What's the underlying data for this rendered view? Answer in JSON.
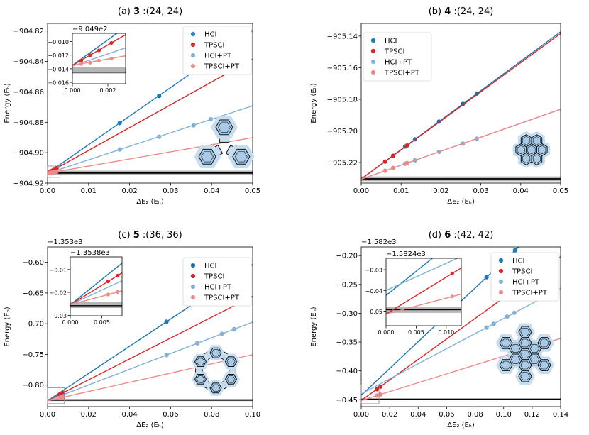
{
  "chart_data": [
    {
      "type": "line",
      "title": "(a) 3 :(24, 24)",
      "title_prefix": "(a)",
      "title_bold": "3",
      "title_suffix": ":(24, 24)",
      "xlabel": "ΔE₂ (Eₕ)",
      "ylabel": "Energy (Eₕ)",
      "xlim": [
        0,
        0.05
      ],
      "ylim": [
        -904.92,
        -904.815
      ],
      "x_ticks": [
        0,
        0.01,
        0.02,
        0.03,
        0.04,
        0.05
      ],
      "x_tick_labels": [
        "0.00",
        "0.01",
        "0.02",
        "0.03",
        "0.04",
        "0.05"
      ],
      "y_ticks": [
        -904.92,
        -904.9,
        -904.88,
        -904.86,
        -904.84,
        -904.82
      ],
      "y_tick_labels": [
        "−904.92",
        "−904.90",
        "−904.88",
        "−904.86",
        "−904.84",
        "−904.82"
      ],
      "y_offset": "",
      "legend_position": "top-right",
      "reference_band": [
        -904.9147,
        -904.9118
      ],
      "reference_line": -904.9134,
      "molecule": "triphenylene-cyclobutadiene",
      "series": [
        {
          "name": "HCI",
          "color": "#1f77b4",
          "fit": [
            -904.9135,
            1.8768
          ],
          "x": [
            0.0176,
            0.0272,
            0.0356
          ],
          "y": [
            -904.8805,
            -904.8627,
            -904.8467
          ]
        },
        {
          "name": "TPSCI",
          "color": "#d62728",
          "fit": [
            -904.9135,
            1.5
          ],
          "x": [
            0.0005,
            0.001,
            0.0015,
            0.0022
          ],
          "y": [
            -904.9128,
            -904.912,
            -904.9113,
            -904.9102
          ]
        },
        {
          "name": "HCI+PT",
          "color": "#80b1d9",
          "fit": [
            -904.9136,
            0.8892
          ],
          "x": [
            0.0176,
            0.0272,
            0.0356,
            0.0398
          ],
          "y": [
            -904.8979,
            -904.8895,
            -904.8821,
            -904.878
          ]
        },
        {
          "name": "TPSCI+PT",
          "color": "#f08a8a",
          "fit": [
            -904.9135,
            0.4682
          ],
          "x": [
            0.0005,
            0.001,
            0.0015,
            0.0022
          ],
          "y": [
            -904.9133,
            -904.9131,
            -904.9128,
            -904.9125
          ]
        }
      ],
      "inset": {
        "offset": "−9.049e2",
        "xlim": [
          0,
          0.003
        ],
        "ylim": [
          -0.0162,
          -0.0088
        ],
        "x_ticks": [
          0,
          0.002
        ],
        "x_tick_labels": [
          "0.000",
          "0.002"
        ],
        "y_ticks": [
          -0.016,
          -0.014,
          -0.012,
          -0.01
        ],
        "y_tick_labels": [
          "−0.016",
          "−0.014",
          "−0.012",
          "−0.010"
        ],
        "band": [
          -0.0147,
          -0.0138
        ],
        "line": -0.0145
      }
    },
    {
      "type": "line",
      "title": "(b) 4 :(24, 24)",
      "title_prefix": "(b)",
      "title_bold": "4",
      "title_suffix": ":(24, 24)",
      "xlabel": "ΔE₂ (Eₕ)",
      "ylabel": "Energy (Eₕ)",
      "xlim": [
        0,
        0.05
      ],
      "ylim": [
        -905.233,
        -905.132
      ],
      "x_ticks": [
        0,
        0.01,
        0.02,
        0.03,
        0.04,
        0.05
      ],
      "x_tick_labels": [
        "0.00",
        "0.01",
        "0.02",
        "0.03",
        "0.04",
        "0.05"
      ],
      "y_ticks": [
        -905.22,
        -905.2,
        -905.18,
        -905.16,
        -905.14
      ],
      "y_tick_labels": [
        "−905.22",
        "−905.20",
        "−905.18",
        "−905.16",
        "−905.14"
      ],
      "y_offset": "",
      "legend_position": "top-left",
      "reference_band": [
        -905.2318,
        -905.2288
      ],
      "reference_line": -905.2303,
      "molecule": "coronene",
      "series": [
        {
          "name": "HCI",
          "color": "#1f77b4",
          "fit": [
            -905.2304,
            1.8622
          ],
          "x": [
            0.011,
            0.0135,
            0.0195,
            0.0255,
            0.029
          ],
          "y": [
            -905.2099,
            -905.2053,
            -905.1941,
            -905.1829,
            -905.1764
          ]
        },
        {
          "name": "TPSCI",
          "color": "#d62728",
          "fit": [
            -905.2304,
            1.8388
          ],
          "x": [
            0.006,
            0.008,
            0.0115
          ],
          "y": [
            -905.2194,
            -905.2157,
            -905.2092
          ]
        },
        {
          "name": "HCI+PT",
          "color": "#80b1d9",
          "fit": [
            -905.2305,
            0.8838
          ],
          "x": [
            0.011,
            0.0135,
            0.0195,
            0.0255,
            0.029
          ],
          "y": [
            -905.2208,
            -905.2186,
            -905.2133,
            -905.208,
            -905.2049
          ]
        },
        {
          "name": "TPSCI+PT",
          "color": "#f08a8a",
          "fit": [
            -905.2305,
            0.8838
          ],
          "x": [
            0.006,
            0.008,
            0.0115
          ],
          "y": [
            -905.2252,
            -905.2234,
            -905.2203
          ]
        }
      ]
    },
    {
      "type": "line",
      "title": "(c) 5 :(36, 36)",
      "title_prefix": "(c)",
      "title_bold": "5",
      "title_suffix": ":(36, 36)",
      "xlabel": "ΔE₂ (Eₕ)",
      "ylabel": "Energy (Eₕ)",
      "xlim": [
        0,
        0.1
      ],
      "ylim": [
        -0.835,
        -0.575
      ],
      "x_ticks": [
        0,
        0.02,
        0.04,
        0.06,
        0.08,
        0.1
      ],
      "x_tick_labels": [
        "0.00",
        "0.02",
        "0.04",
        "0.06",
        "0.08",
        "0.10"
      ],
      "y_ticks": [
        -0.8,
        -0.75,
        -0.7,
        -0.65,
        -0.6
      ],
      "y_tick_labels": [
        "−0.80",
        "−0.75",
        "−0.70",
        "−0.65",
        "−0.60"
      ],
      "y_offset": "−1.353e3",
      "legend_position": "top-right",
      "reference_band": [
        -0.826,
        -0.8225
      ],
      "reference_line": -0.8243,
      "molecule": "cyclobutadiene-macrocycle",
      "series": [
        {
          "name": "HCI",
          "color": "#1f77b4",
          "fit": [
            -0.8254,
            2.2176
          ],
          "x": [
            0.058,
            0.073
          ],
          "y": [
            -0.6968,
            -0.6635
          ]
        },
        {
          "name": "TPSCI",
          "color": "#d62728",
          "fit": [
            -0.8254,
            1.7
          ],
          "x": [
            0.006,
            0.0075
          ],
          "y": [
            -0.8152,
            -0.8127
          ]
        },
        {
          "name": "HCI+PT",
          "color": "#80b1d9",
          "fit": [
            -0.8254,
            1.2806
          ],
          "x": [
            0.058,
            0.073,
            0.085,
            0.091
          ],
          "y": [
            -0.7511,
            -0.7319,
            -0.7165,
            -0.7089
          ]
        },
        {
          "name": "TPSCI+PT",
          "color": "#f08a8a",
          "fit": [
            -0.8254,
            0.75
          ],
          "x": [
            0.006,
            0.0075
          ],
          "y": [
            -0.8209,
            -0.8198
          ]
        }
      ],
      "inset": {
        "offset": "−1.3538e3",
        "xlim": [
          0,
          0.0082
        ],
        "ylim": [
          -0.0302,
          -0.0045
        ],
        "x_ticks": [
          0,
          0.005
        ],
        "x_tick_labels": [
          "0.000",
          "0.005"
        ],
        "y_ticks": [
          -0.03,
          -0.02,
          -0.01
        ],
        "y_tick_labels": [
          "−0.03",
          "−0.02",
          "−0.01"
        ],
        "band": [
          -0.0268,
          -0.0242
        ],
        "line": -0.0258
      }
    },
    {
      "type": "line",
      "title": "(d) 6 :(42, 42)",
      "title_prefix": "(d)",
      "title_bold": "6",
      "title_suffix": ":(42, 42)",
      "xlabel": "ΔE₂ (Eₕ)",
      "ylabel": "Energy (Eₕ)",
      "xlim": [
        0,
        0.14
      ],
      "ylim": [
        -0.462,
        -0.185
      ],
      "x_ticks": [
        0,
        0.02,
        0.04,
        0.06,
        0.08,
        0.1,
        0.12,
        0.14
      ],
      "x_tick_labels": [
        "0.00",
        "0.02",
        "0.04",
        "0.06",
        "0.08",
        "0.10",
        "0.12",
        "0.14"
      ],
      "y_ticks": [
        -0.45,
        -0.4,
        -0.35,
        -0.3,
        -0.25,
        -0.2
      ],
      "y_tick_labels": [
        "−0.45",
        "−0.40",
        "−0.35",
        "−0.30",
        "−0.25",
        "−0.20"
      ],
      "y_offset": "−1.582e3",
      "legend_position": "top-right",
      "reference_band": [
        -0.4508,
        -0.4478
      ],
      "reference_line": -0.4493,
      "molecule": "large-pah",
      "series": [
        {
          "name": "HCI",
          "color": "#1f77b4",
          "fit": [
            -0.4424,
            2.3275
          ],
          "x": [
            0.088,
            0.099,
            0.108
          ],
          "y": [
            -0.2376,
            -0.212,
            -0.191
          ]
        },
        {
          "name": "TPSCI",
          "color": "#d62728",
          "fit": [
            -0.4514,
            1.7808
          ],
          "x": [
            0.011,
            0.0135
          ],
          "y": [
            -0.4318,
            -0.4274
          ]
        },
        {
          "name": "HCI+PT",
          "color": "#80b1d9",
          "fit": [
            -0.44,
            1.3084
          ],
          "x": [
            0.088,
            0.093,
            0.1025,
            0.1075
          ],
          "y": [
            -0.3249,
            -0.3183,
            -0.3059,
            -0.2993
          ]
        },
        {
          "name": "TPSCI+PT",
          "color": "#f08a8a",
          "fit": [
            -0.4514,
            0.7699
          ],
          "x": [
            0.011,
            0.0135
          ],
          "y": [
            -0.4429,
            -0.441
          ]
        }
      ],
      "inset": {
        "offset": "−1.5824e3",
        "xlim": [
          0,
          0.0125
        ],
        "ylim": [
          -0.057,
          -0.0245
        ],
        "x_ticks": [
          0,
          0.005,
          0.01
        ],
        "x_tick_labels": [
          "0.000",
          "0.005",
          "0.010"
        ],
        "y_ticks": [
          -0.05,
          -0.04,
          -0.03
        ],
        "y_tick_labels": [
          "−0.05",
          "−0.04",
          "−0.03"
        ],
        "band": [
          -0.0508,
          -0.0478
        ],
        "line": -0.0493
      }
    }
  ]
}
